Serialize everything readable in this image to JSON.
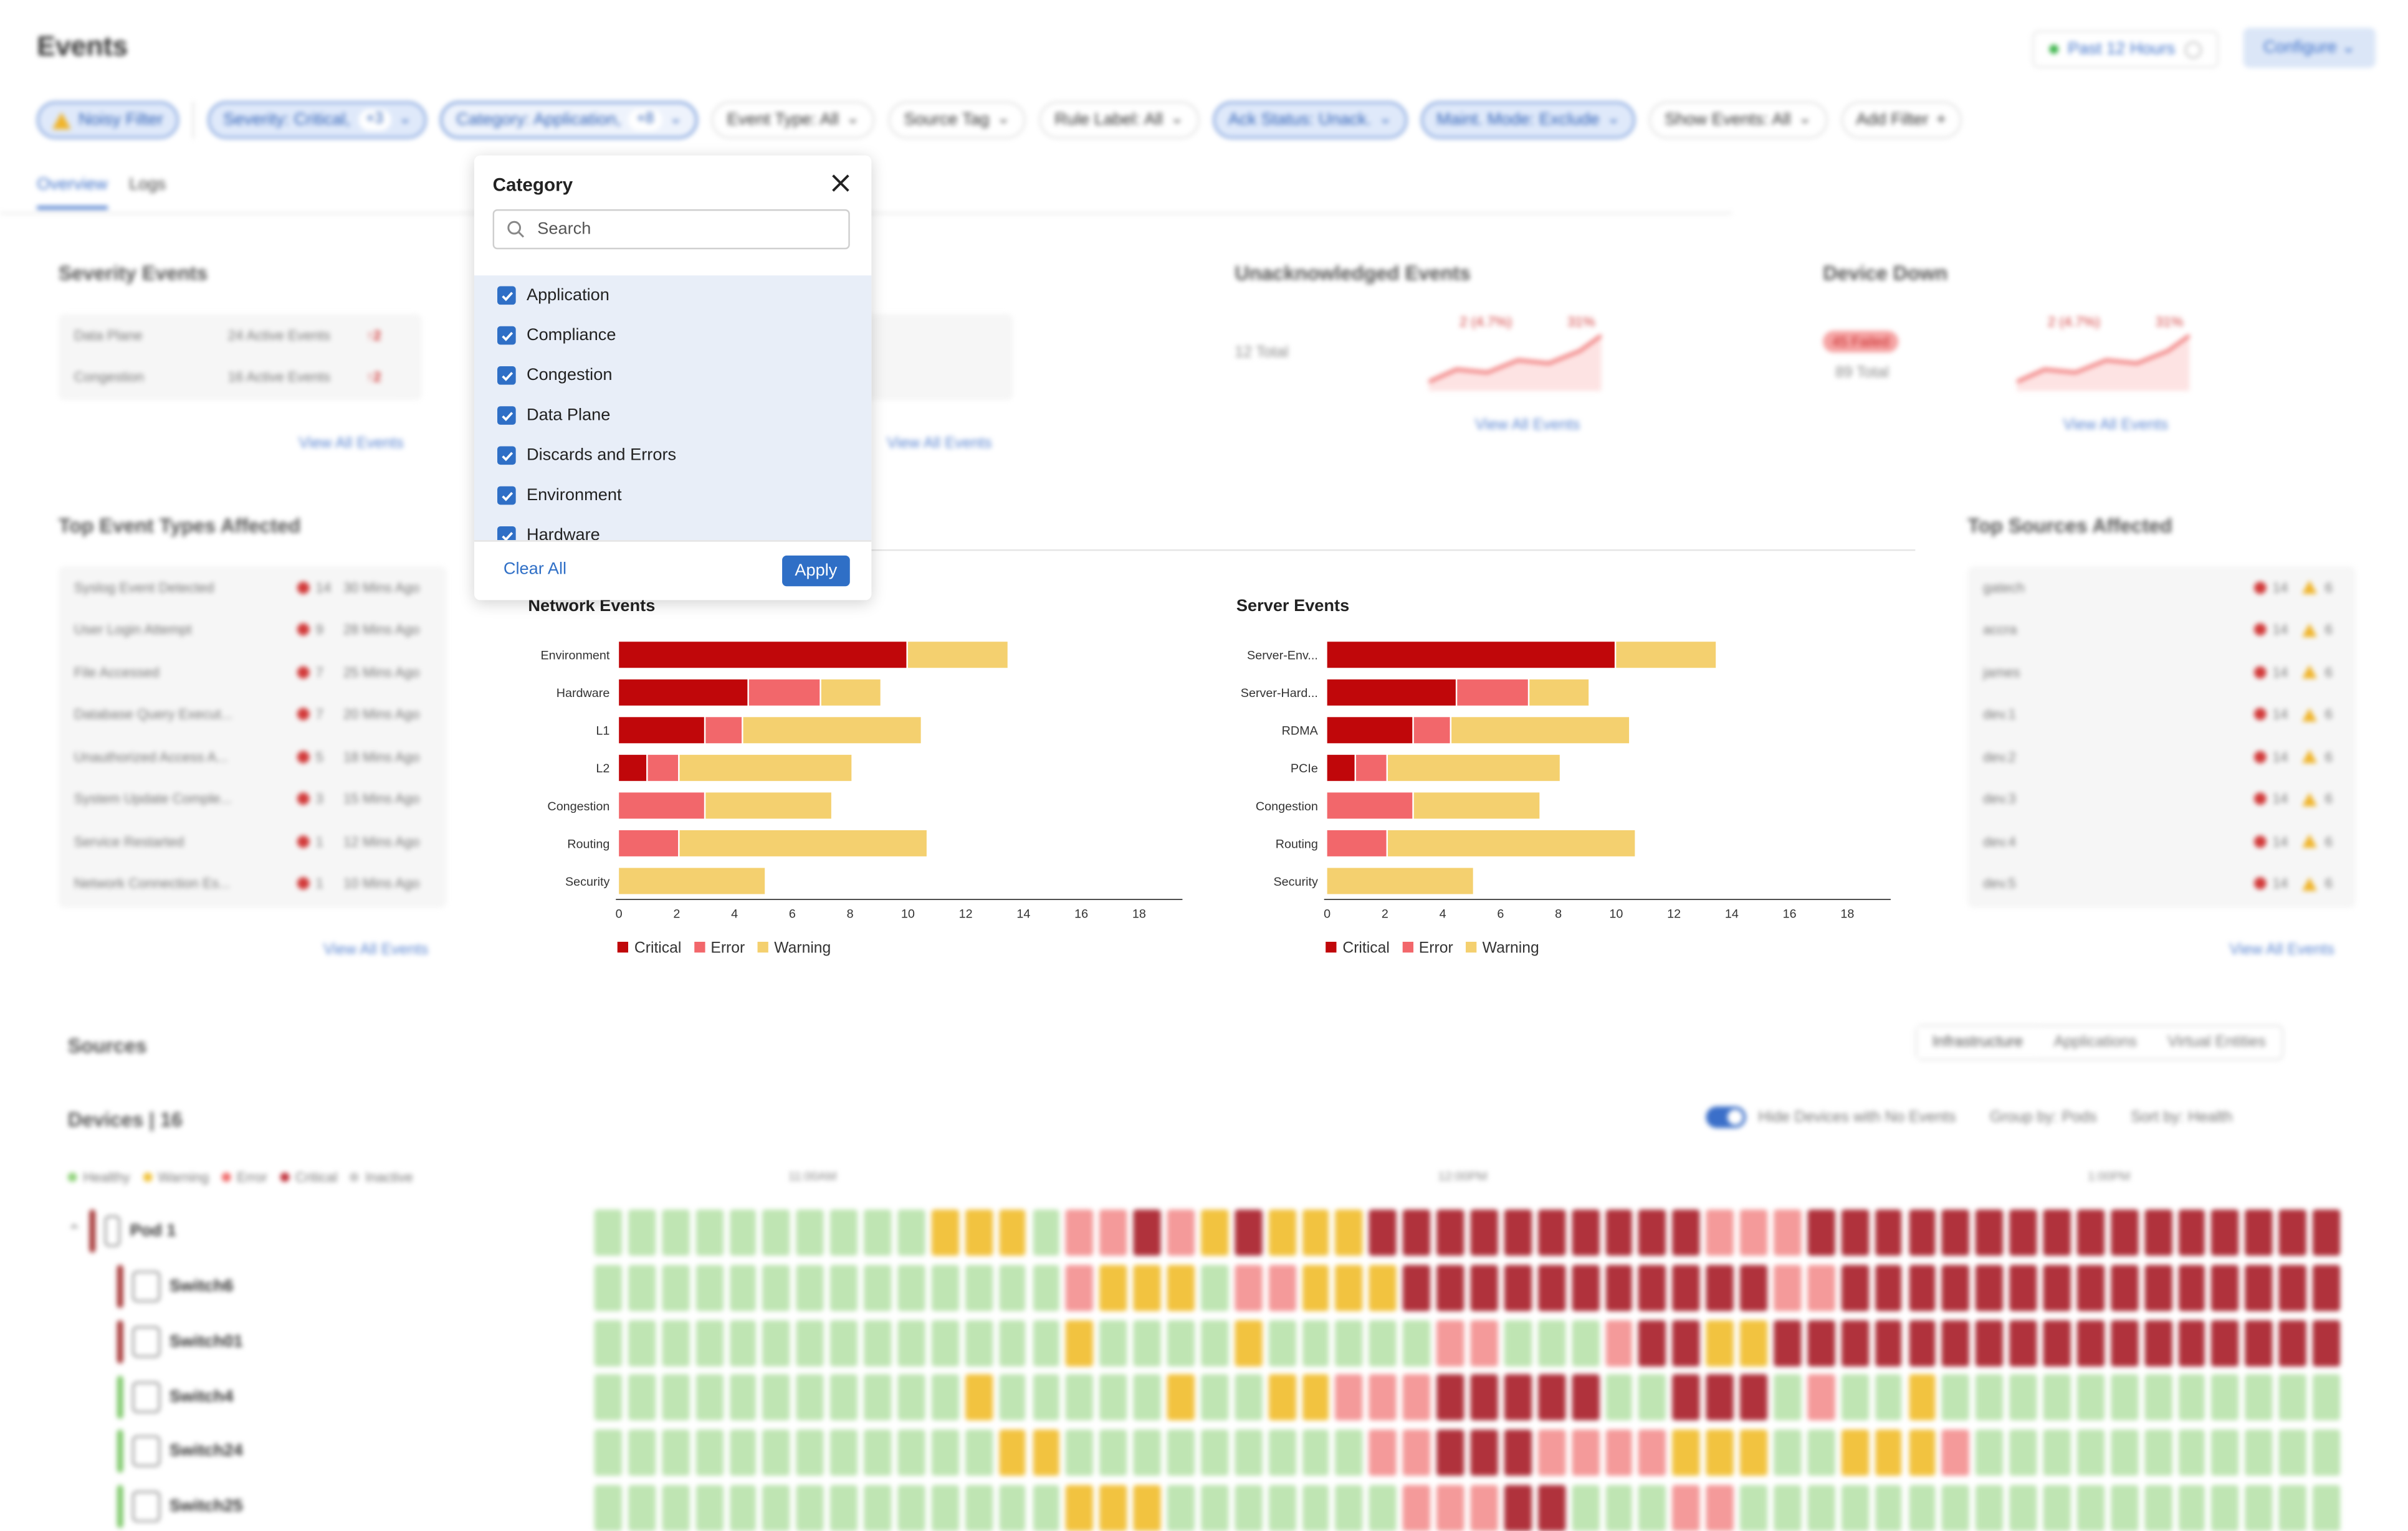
{
  "header": {
    "title": "Events",
    "time_range": "Past 12 Hours",
    "configure_label": "Configure"
  },
  "filters": [
    {
      "label": "Noisy Filter",
      "count": "",
      "state": "active-warn"
    },
    {
      "label": "Severity: Critical,",
      "count": "+3",
      "state": "active"
    },
    {
      "label": "Category: Application,",
      "count": "+8",
      "state": "focus"
    },
    {
      "label": "Event Type: All",
      "count": "",
      "state": "normal"
    },
    {
      "label": "Source Tag",
      "count": "",
      "state": "normal"
    },
    {
      "label": "Rule Label: All",
      "count": "",
      "state": "normal"
    },
    {
      "label": "Ack Status: Unack.",
      "count": "",
      "state": "active"
    },
    {
      "label": "Maint. Mode: Exclude",
      "count": "",
      "state": "active"
    },
    {
      "label": "Show Events: All",
      "count": "",
      "state": "normal"
    },
    {
      "label": "Add Filter",
      "count": "",
      "state": "add"
    }
  ],
  "tabs": [
    "Overview",
    "Logs"
  ],
  "severity_events": {
    "title": "Severity Events",
    "rows": [
      {
        "name": "Data Plane",
        "active": "24 Active Events",
        "count": "2"
      },
      {
        "name": "Congestion",
        "active": "16 Active Events",
        "count": "2"
      }
    ],
    "link": "View All Events"
  },
  "mid_card": {
    "link": "View All Events"
  },
  "unack_events": {
    "title": "Unacknowledged Events",
    "total": "12 Total",
    "delta": "2 (4.7%)",
    "pct": "31%",
    "link": "View All Events"
  },
  "device_down": {
    "title": "Device Down",
    "failed": "45 Failed",
    "total": "89 Total",
    "delta": "2 (4.7%)",
    "pct": "31%",
    "link": "View All Events"
  },
  "top_event_types": {
    "title": "Top Event Types Affected",
    "rows": [
      {
        "name": "Syslog Event Detected",
        "count": "14",
        "ago": "30 Mins Ago"
      },
      {
        "name": "User Login Attempt",
        "count": "9",
        "ago": "28 Mins Ago"
      },
      {
        "name": "File Accessed",
        "count": "7",
        "ago": "25 Mins Ago"
      },
      {
        "name": "Database Query Execut...",
        "count": "7",
        "ago": "20 Mins Ago"
      },
      {
        "name": "Unauthorized Access A...",
        "count": "5",
        "ago": "18 Mins Ago"
      },
      {
        "name": "System Update Comple...",
        "count": "3",
        "ago": "15 Mins Ago"
      },
      {
        "name": "Service Restarted",
        "count": "1",
        "ago": "12 Mins Ago"
      },
      {
        "name": "Network Connection Es...",
        "count": "1",
        "ago": "10 Mins Ago"
      }
    ],
    "link": "View All Events"
  },
  "top_sources": {
    "title": "Top Sources Affected",
    "rows": [
      {
        "name": "gatech",
        "crit": "14",
        "warn": "6"
      },
      {
        "name": "accra",
        "crit": "14",
        "warn": "6"
      },
      {
        "name": "james",
        "crit": "14",
        "warn": "6"
      },
      {
        "name": "dev.1",
        "crit": "14",
        "warn": "6"
      },
      {
        "name": "dev.2",
        "crit": "14",
        "warn": "6"
      },
      {
        "name": "dev.3",
        "crit": "14",
        "warn": "6"
      },
      {
        "name": "dev.4",
        "crit": "14",
        "warn": "6"
      },
      {
        "name": "dev.5",
        "crit": "14",
        "warn": "6"
      }
    ],
    "link": "View All Events"
  },
  "chart_data": [
    {
      "type": "bar",
      "orientation": "horizontal",
      "stacked": true,
      "title": "Network Events",
      "categories": [
        "Environment",
        "Hardware",
        "L1",
        "L2",
        "Congestion",
        "Routing",
        "Security"
      ],
      "series": [
        {
          "name": "Critical",
          "color": "#c0070a",
          "values": [
            10,
            4.5,
            3,
            1,
            0,
            0,
            0
          ]
        },
        {
          "name": "Error",
          "color": "#f2676b",
          "values": [
            0,
            2.5,
            1.3,
            1.1,
            3,
            2.1,
            0
          ]
        },
        {
          "name": "Warning",
          "color": "#f4d06f",
          "values": [
            3.5,
            2.1,
            6.2,
            6,
            4.4,
            8.6,
            5.1
          ]
        }
      ],
      "xticks": [
        0,
        2,
        4,
        6,
        8,
        10,
        12,
        14,
        16,
        18
      ],
      "xlim": [
        0,
        19.5
      ],
      "legend": "bottom-left"
    },
    {
      "type": "bar",
      "orientation": "horizontal",
      "stacked": true,
      "title": "Server Events",
      "categories": [
        "Server-Env...",
        "Server-Hard...",
        "RDMA",
        "PCIe",
        "Congestion",
        "Routing",
        "Security"
      ],
      "series": [
        {
          "name": "Critical",
          "color": "#c0070a",
          "values": [
            10,
            4.5,
            3,
            1,
            0,
            0,
            0
          ]
        },
        {
          "name": "Error",
          "color": "#f2676b",
          "values": [
            0,
            2.5,
            1.3,
            1.1,
            3,
            2.1,
            0
          ]
        },
        {
          "name": "Warning",
          "color": "#f4d06f",
          "values": [
            3.5,
            2.1,
            6.2,
            6,
            4.4,
            8.6,
            5.1
          ]
        }
      ],
      "xticks": [
        0,
        2,
        4,
        6,
        8,
        10,
        12,
        14,
        16,
        18
      ],
      "xlim": [
        0,
        19.5
      ],
      "legend": "bottom-left"
    }
  ],
  "sources": {
    "title": "Sources",
    "segments": [
      "Infrastructure",
      "Applications",
      "Virtual Entities"
    ],
    "devices_label": "Devices | 16",
    "hide_toggle_label": "Hide Devices with No Events",
    "group_by": "Group by: Pods",
    "sort_by": "Sort by: Health",
    "legend": [
      {
        "label": "Healthy",
        "color": "#8fd27a"
      },
      {
        "label": "Warning",
        "color": "#f0c23a"
      },
      {
        "label": "Error",
        "color": "#f06a6a"
      },
      {
        "label": "Critical",
        "color": "#c0303a"
      },
      {
        "label": "Inactive",
        "color": "#c8c8c8"
      }
    ],
    "time_labels": [
      "11:00AM",
      "12:00PM",
      "1:00PM"
    ],
    "pod": {
      "name": "Pod 1",
      "color": "#a83a3a"
    },
    "devices": [
      {
        "name": "Switch6",
        "color": "#a83a3a"
      },
      {
        "name": "Switch01",
        "color": "#a83a3a"
      },
      {
        "name": "Switch4",
        "color": "#7fc96b"
      },
      {
        "name": "Switch24",
        "color": "#7fc96b"
      },
      {
        "name": "Switch25",
        "color": "#7fc96b"
      }
    ],
    "heatmap_rows": [
      "HHHHHHHHHHWWWHEEREWRWWWRRRRRRRRRREEERRRRRRRRRR",
      "HHHHHHHHHHHHHHEWWWHEEWWWRRRRRRRRRRREERRRRRRRRRR",
      "HHHHHHHHHHHHHHWHHHHWHHHHHEEHHHERRWWRRRRRRRRRRRR",
      "HHHHHHHHHHHWHHHHHWHHWWEEERRRRRHHRRRHEHHWHHHHHHH",
      "HHHHHHHHHHHHWWHHHHHHHHHEERRREEEEWWWHHWWWEHHHHHHH",
      "HHHHHHHHHHHHHHWWWHHHHHHHEEERRHHHEEHHHHHHHHHHHH"
    ]
  },
  "category_popover": {
    "title": "Category",
    "search_placeholder": "Search",
    "items": [
      "Application",
      "Compliance",
      "Congestion",
      "Data Plane",
      "Discards and Errors",
      "Environment",
      "Hardware"
    ],
    "clear_label": "Clear All",
    "apply_label": "Apply"
  }
}
